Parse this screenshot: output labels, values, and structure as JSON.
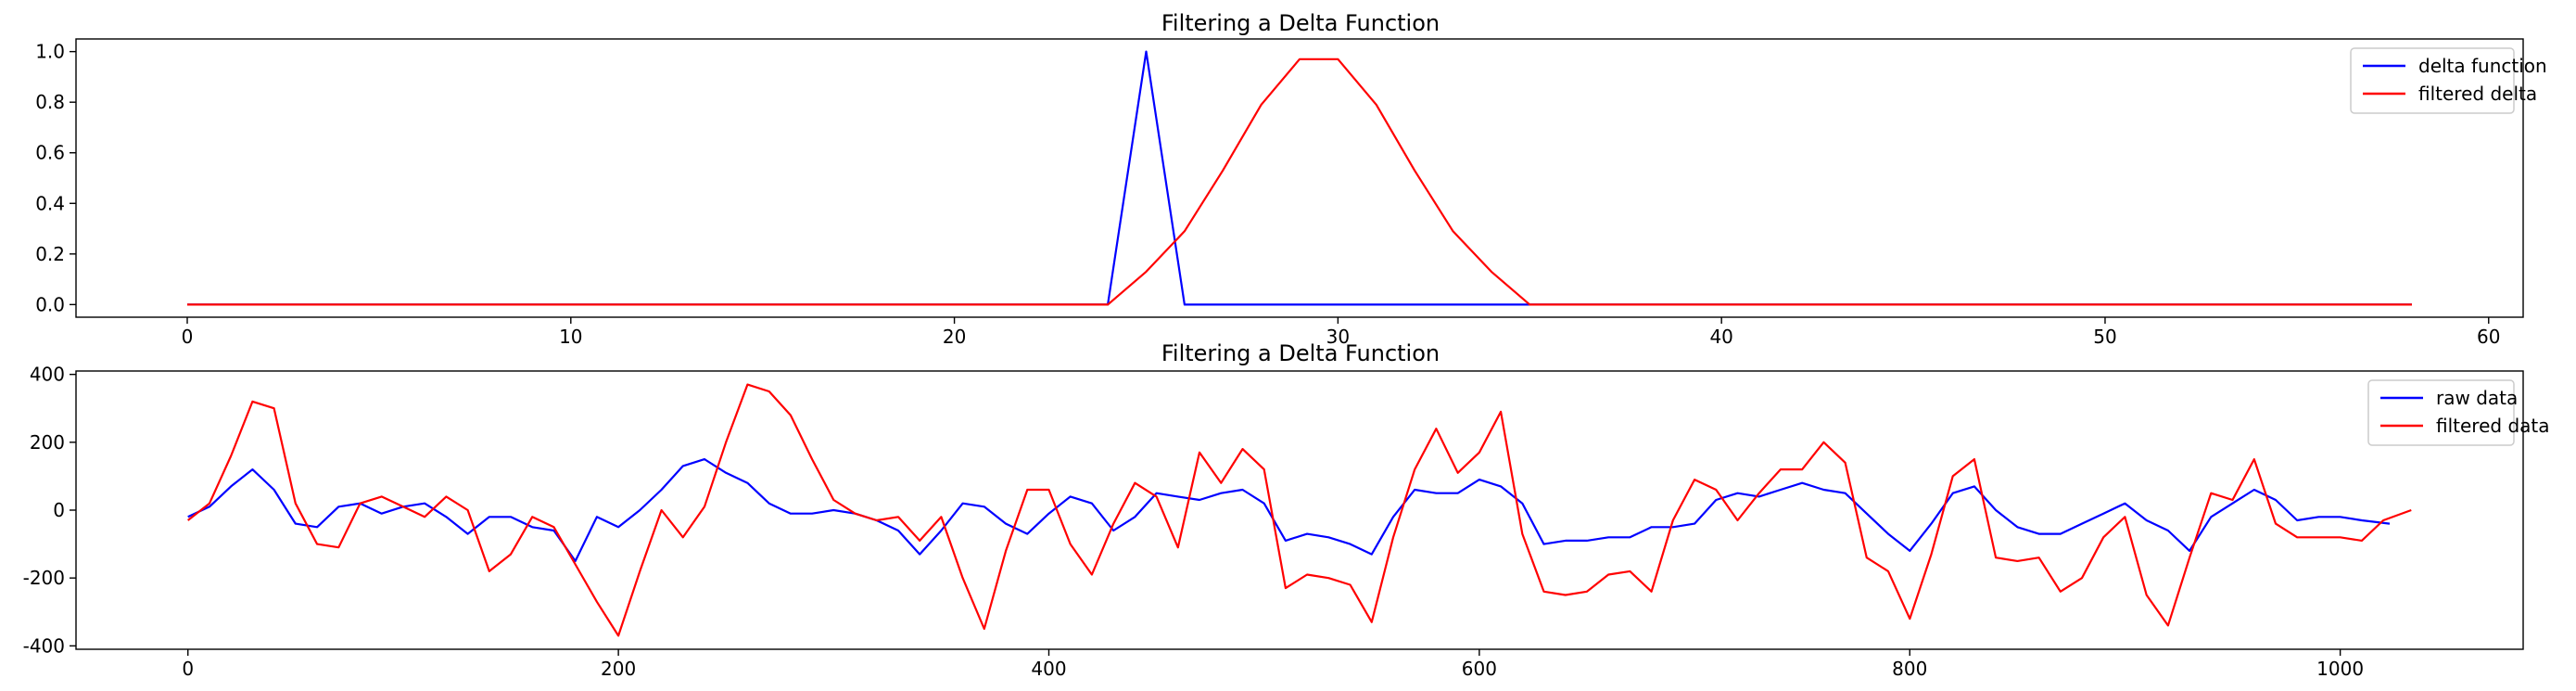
{
  "chart_data": [
    {
      "type": "line",
      "title": "Filtering a Delta Function",
      "xlabel": "",
      "ylabel": "",
      "xlim": [
        -2.9,
        60.9
      ],
      "ylim": [
        -0.05,
        1.05
      ],
      "xticks": [
        0,
        10,
        20,
        30,
        40,
        50,
        60
      ],
      "yticks": [
        0.0,
        0.2,
        0.4,
        0.6,
        0.8,
        1.0
      ],
      "ytick_decimals": 1,
      "grid": false,
      "legend_position": "top-right",
      "series": [
        {
          "name": "delta function",
          "color": "#0000ff",
          "x": [
            0,
            24,
            25,
            26,
            58
          ],
          "y": [
            0,
            0,
            1,
            0,
            0
          ]
        },
        {
          "name": "filtered delta",
          "color": "#ff0000",
          "x": [
            0,
            24,
            25,
            26,
            27,
            28,
            29,
            30,
            31,
            32,
            33,
            34,
            35,
            58
          ],
          "y": [
            0,
            0,
            0.13,
            0.29,
            0.53,
            0.79,
            0.97,
            0.97,
            0.79,
            0.53,
            0.29,
            0.13,
            0,
            0
          ]
        }
      ]
    },
    {
      "type": "line",
      "title": "Filtering a Delta Function",
      "xlabel": "",
      "ylabel": "",
      "xlim": [
        -52,
        1085
      ],
      "ylim": [
        -410,
        410
      ],
      "xticks": [
        0,
        200,
        400,
        600,
        800,
        1000
      ],
      "yticks": [
        -400,
        -200,
        0,
        200,
        400
      ],
      "ytick_decimals": 0,
      "grid": false,
      "legend_position": "top-right",
      "series": [
        {
          "name": "raw data",
          "color": "#0000ff",
          "x": [
            0,
            10,
            20,
            30,
            40,
            50,
            60,
            70,
            80,
            90,
            100,
            110,
            120,
            130,
            140,
            150,
            160,
            170,
            180,
            190,
            200,
            210,
            220,
            230,
            240,
            250,
            260,
            270,
            280,
            290,
            300,
            310,
            320,
            330,
            340,
            350,
            360,
            370,
            380,
            390,
            400,
            410,
            420,
            430,
            440,
            450,
            460,
            470,
            480,
            490,
            500,
            510,
            520,
            530,
            540,
            550,
            560,
            570,
            580,
            590,
            600,
            610,
            620,
            630,
            640,
            650,
            660,
            670,
            680,
            690,
            700,
            710,
            720,
            730,
            740,
            750,
            760,
            770,
            780,
            790,
            800,
            810,
            820,
            830,
            840,
            850,
            860,
            870,
            880,
            890,
            900,
            910,
            920,
            930,
            940,
            950,
            960,
            970,
            980,
            990,
            1000,
            1010,
            1023
          ],
          "y": [
            -20,
            10,
            70,
            120,
            60,
            -40,
            -50,
            10,
            20,
            -10,
            10,
            20,
            -20,
            -70,
            -20,
            -20,
            -50,
            -60,
            -150,
            -20,
            -50,
            0,
            60,
            130,
            150,
            110,
            80,
            20,
            -10,
            -10,
            0,
            -10,
            -30,
            -60,
            -130,
            -60,
            20,
            10,
            -40,
            -70,
            -10,
            40,
            20,
            -60,
            -20,
            50,
            40,
            30,
            50,
            60,
            20,
            -90,
            -70,
            -80,
            -100,
            -130,
            -20,
            60,
            50,
            50,
            90,
            70,
            20,
            -100,
            -90,
            -90,
            -80,
            -80,
            -50,
            -50,
            -40,
            30,
            50,
            40,
            60,
            80,
            60,
            50,
            -10,
            -70,
            -120,
            -40,
            50,
            70,
            0,
            -50,
            -70,
            -70,
            -40,
            -10,
            20,
            -30,
            -60,
            -120,
            -20,
            20,
            60,
            30,
            -30,
            -20,
            -20,
            -30,
            -40
          ]
        },
        {
          "name": "filtered data",
          "color": "#ff0000",
          "x": [
            0,
            10,
            20,
            30,
            40,
            50,
            60,
            70,
            80,
            90,
            100,
            110,
            120,
            130,
            140,
            150,
            160,
            170,
            180,
            190,
            200,
            210,
            220,
            230,
            240,
            250,
            260,
            270,
            280,
            290,
            300,
            310,
            320,
            330,
            340,
            350,
            360,
            370,
            380,
            390,
            400,
            410,
            420,
            430,
            440,
            450,
            460,
            470,
            480,
            490,
            500,
            510,
            520,
            530,
            540,
            550,
            560,
            570,
            580,
            590,
            600,
            610,
            620,
            630,
            640,
            650,
            660,
            670,
            680,
            690,
            700,
            710,
            720,
            730,
            740,
            750,
            760,
            770,
            780,
            790,
            800,
            810,
            820,
            830,
            840,
            850,
            860,
            870,
            880,
            890,
            900,
            910,
            920,
            930,
            940,
            950,
            960,
            970,
            980,
            990,
            1000,
            1010,
            1020,
            1033
          ],
          "y": [
            -30,
            20,
            160,
            320,
            300,
            20,
            -100,
            -110,
            20,
            40,
            10,
            -20,
            40,
            0,
            -180,
            -130,
            -20,
            -50,
            -160,
            -270,
            -370,
            -180,
            0,
            -80,
            10,
            200,
            370,
            350,
            280,
            150,
            30,
            -10,
            -30,
            -20,
            -90,
            -20,
            -200,
            -350,
            -120,
            60,
            60,
            -100,
            -190,
            -40,
            80,
            40,
            -110,
            170,
            80,
            180,
            120,
            -230,
            -190,
            -200,
            -220,
            -330,
            -80,
            120,
            240,
            110,
            170,
            290,
            -70,
            -240,
            -250,
            -240,
            -190,
            -180,
            -240,
            -30,
            90,
            60,
            -30,
            50,
            120,
            120,
            200,
            140,
            -140,
            -180,
            -320,
            -130,
            100,
            150,
            -140,
            -150,
            -140,
            -240,
            -200,
            -80,
            -20,
            -250,
            -340,
            -140,
            50,
            30,
            150,
            -40,
            -80,
            -80,
            -80,
            -90,
            -30,
            0
          ]
        }
      ]
    }
  ]
}
